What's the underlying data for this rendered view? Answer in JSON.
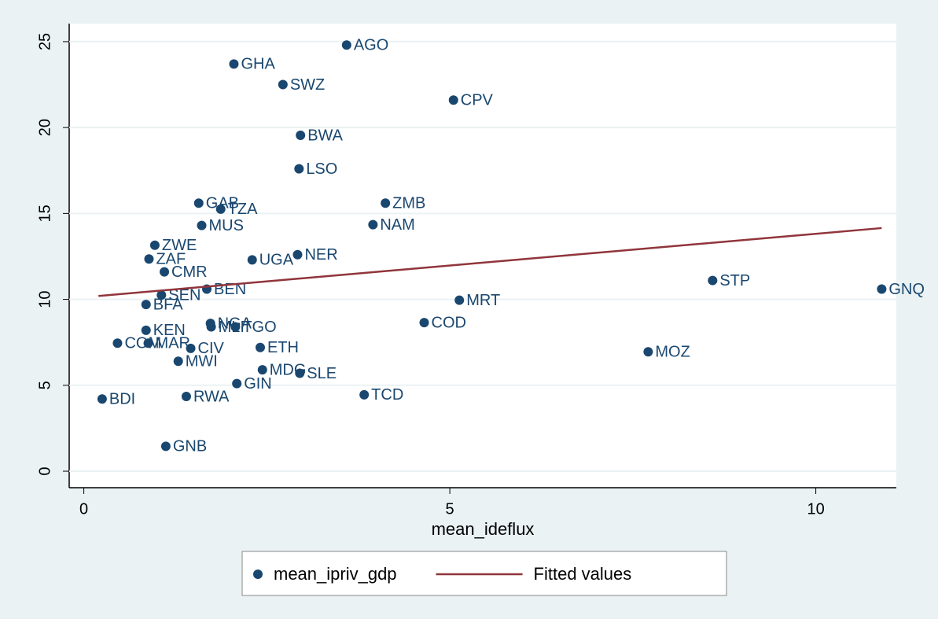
{
  "chart_data": {
    "type": "scatter",
    "x_label": "mean_ideflux",
    "xlim": [
      -0.2,
      11.1
    ],
    "ylim": [
      -0.96,
      26.05
    ],
    "xticks": [
      0,
      5,
      10
    ],
    "yticks": [
      0,
      5,
      10,
      15,
      20,
      25
    ],
    "grid": true,
    "legend": "bottom",
    "series": [
      {
        "name": "mean_ipriv_gdp",
        "color": "#1a476f",
        "type": "scatter",
        "labels": [
          "AGO",
          "GHA",
          "SWZ",
          "CPV",
          "BWA",
          "LSO",
          "GAB",
          "TZA",
          "ZMB",
          "NAM",
          "MUS",
          "ZWE",
          "ZAF",
          "UGA",
          "NER",
          "CMR",
          "STP",
          "GNQ",
          "BEN",
          "SEN",
          "BFA",
          "MRT",
          "MOZ",
          "NGA",
          "MLI",
          "TGO",
          "COD",
          "KEN",
          "COM",
          "MAR",
          "CIV",
          "ETH",
          "MWI",
          "MDG",
          "SLE",
          "GIN",
          "TCD",
          "BDI",
          "RWA",
          "GNB"
        ],
        "x": [
          3.59,
          2.05,
          2.72,
          5.05,
          2.96,
          2.94,
          1.57,
          1.87,
          4.12,
          3.95,
          1.61,
          0.97,
          0.89,
          2.3,
          2.92,
          1.1,
          8.59,
          10.9,
          1.68,
          1.06,
          0.85,
          5.13,
          7.71,
          1.73,
          1.74,
          2.07,
          4.65,
          0.85,
          0.46,
          0.88,
          1.46,
          2.41,
          1.29,
          2.44,
          2.95,
          2.09,
          3.83,
          0.25,
          1.4,
          1.12
        ],
        "values": [
          24.8,
          23.7,
          22.5,
          21.6,
          19.55,
          17.6,
          15.6,
          15.25,
          15.6,
          14.35,
          14.3,
          13.15,
          12.35,
          12.3,
          12.6,
          11.6,
          11.1,
          10.6,
          10.6,
          10.25,
          9.7,
          9.95,
          6.95,
          8.6,
          8.4,
          8.4,
          8.65,
          8.2,
          7.45,
          7.45,
          7.15,
          7.2,
          6.4,
          5.9,
          5.7,
          5.1,
          4.45,
          4.2,
          4.35,
          1.45
        ]
      },
      {
        "name": "Fitted values",
        "color": "#90353b",
        "type": "line",
        "x": [
          0.2,
          10.9
        ],
        "values": [
          10.2,
          14.15
        ]
      }
    ]
  }
}
